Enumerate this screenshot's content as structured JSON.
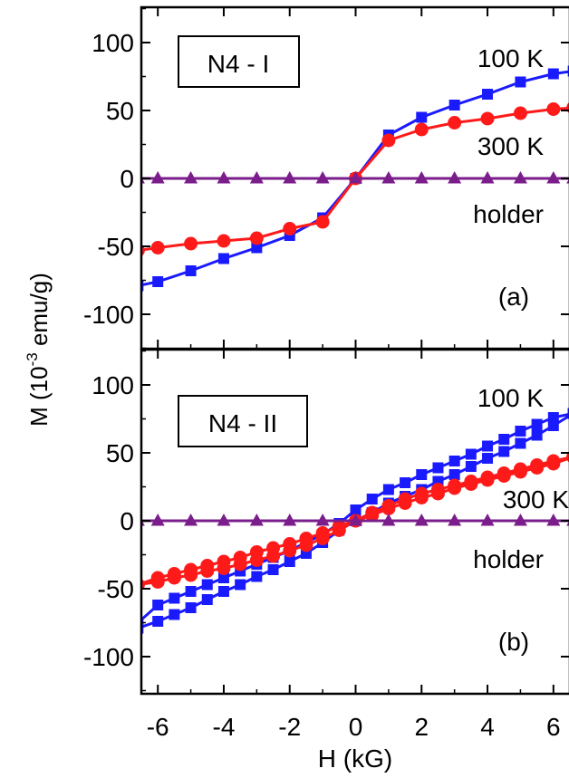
{
  "y_axis_label": {
    "main": "M (10",
    "exp": "-3",
    "unit": " emu/g)"
  },
  "x_axis_label": "H (kG)",
  "x_ticks": [
    "-6",
    "-4",
    "-2",
    "0",
    "2",
    "4",
    "6"
  ],
  "colors": {
    "100K": "#1a1aff",
    "300K": "#ff1a1a",
    "holder": "#7b1e8c"
  },
  "chart_data": [
    {
      "type": "line",
      "panel_label": "N4 - I",
      "corner_label": "(a)",
      "xlim": [
        -6.5,
        6.5
      ],
      "ylim": [
        -125,
        125
      ],
      "y_ticks": [
        "100",
        "50",
        "0",
        "-50",
        "-100"
      ],
      "annotations": [
        "100 K",
        "300 K",
        "holder"
      ],
      "series": [
        {
          "name": "100 K",
          "marker": "square",
          "color": "#1a1aff",
          "x": [
            -6.6,
            -6,
            -5,
            -4,
            -3,
            -2,
            -1,
            0,
            1,
            2,
            3,
            4,
            5,
            6,
            6.6
          ],
          "y": [
            -79,
            -76,
            -68,
            -59,
            -51,
            -42,
            -29,
            0,
            32,
            45,
            54,
            62,
            71,
            77,
            79
          ]
        },
        {
          "name": "300 K",
          "marker": "circle",
          "color": "#ff1a1a",
          "x": [
            -6.6,
            -6,
            -5,
            -4,
            -3,
            -2,
            -1,
            0,
            1,
            2,
            3,
            4,
            5,
            6,
            6.6
          ],
          "y": [
            -53,
            -51,
            -48,
            -46,
            -44,
            -37,
            -32,
            0,
            28,
            36,
            41,
            44,
            48,
            51,
            52
          ]
        },
        {
          "name": "holder",
          "marker": "triangle",
          "color": "#7b1e8c",
          "x": [
            -6.6,
            -6,
            -5,
            -4,
            -3,
            -2,
            -1,
            0,
            1,
            2,
            3,
            4,
            5,
            6,
            6.6
          ],
          "y": [
            0,
            0,
            0,
            0,
            0,
            0,
            0,
            0,
            0,
            0,
            0,
            0,
            0,
            0,
            0
          ]
        }
      ]
    },
    {
      "type": "line",
      "panel_label": "N4 - II",
      "corner_label": "(b)",
      "xlim": [
        -6.5,
        6.5
      ],
      "ylim": [
        -125,
        125
      ],
      "y_ticks": [
        "100",
        "50",
        "0",
        "-50",
        "-100"
      ],
      "annotations": [
        "100 K",
        "300 K",
        "holder"
      ],
      "series": [
        {
          "name": "100 K",
          "marker": "square",
          "color": "#1a1aff",
          "x": [
            -6.6,
            -6,
            -5.5,
            -5,
            -4.5,
            -4,
            -3.5,
            -3,
            -2.5,
            -2,
            -1.5,
            -1,
            -0.5,
            0,
            0.5,
            1,
            1.5,
            2,
            2.5,
            3,
            3.5,
            4,
            4.5,
            5,
            5.5,
            6,
            6.6,
            6.6,
            6,
            5.5,
            5,
            4.5,
            4,
            3.5,
            3,
            2.5,
            2,
            1.5,
            1,
            0.5,
            0,
            -0.5,
            -1,
            -1.5,
            -2,
            -2.5,
            -3,
            -3.5,
            -4,
            -4.5,
            -5,
            -5.5,
            -6,
            -6.6
          ],
          "y": [
            -79,
            -74,
            -69,
            -64,
            -58,
            -52,
            -47,
            -41,
            -36,
            -30,
            -24,
            -16,
            -7,
            0,
            6,
            13,
            18,
            23,
            29,
            34,
            40,
            46,
            51,
            57,
            63,
            70,
            79,
            79,
            76,
            71,
            66,
            60,
            55,
            49,
            44,
            39,
            34,
            28,
            23,
            16,
            8,
            -2,
            -10,
            -16,
            -22,
            -27,
            -32,
            -37,
            -42,
            -47,
            -52,
            -57,
            -62,
            -75
          ]
        },
        {
          "name": "300 K",
          "marker": "circle",
          "color": "#ff1a1a",
          "x": [
            -6.6,
            -6,
            -5.5,
            -5,
            -4.5,
            -4,
            -3.5,
            -3,
            -2.5,
            -2,
            -1.5,
            -1,
            -0.5,
            0,
            0.5,
            1,
            1.5,
            2,
            2.5,
            3,
            3.5,
            4,
            4.5,
            5,
            5.5,
            6,
            6.6,
            6.6,
            6,
            5.5,
            5,
            4.5,
            4,
            3.5,
            3,
            2.5,
            2,
            1.5,
            1,
            0.5,
            0,
            -0.5,
            -1,
            -1.5,
            -2,
            -2.5,
            -3,
            -3.5,
            -4,
            -4.5,
            -5,
            -5.5,
            -6,
            -6.6
          ],
          "y": [
            -47,
            -45,
            -42,
            -40,
            -37,
            -35,
            -32,
            -29,
            -26,
            -22,
            -18,
            -13,
            -7,
            0,
            4,
            9,
            13,
            17,
            20,
            24,
            27,
            30,
            33,
            36,
            39,
            42,
            47,
            47,
            44,
            41,
            38,
            35,
            32,
            29,
            26,
            23,
            20,
            16,
            11,
            6,
            0,
            -4,
            -9,
            -13,
            -17,
            -20,
            -23,
            -27,
            -30,
            -33,
            -36,
            -39,
            -42,
            -47
          ]
        },
        {
          "name": "holder",
          "marker": "triangle",
          "color": "#7b1e8c",
          "x": [
            -6.6,
            -6,
            -5,
            -4,
            -3,
            -2,
            -1,
            0,
            1,
            2,
            3,
            4,
            5,
            6,
            6.6
          ],
          "y": [
            0,
            0,
            0,
            0,
            0,
            0,
            0,
            0,
            0,
            0,
            0,
            0,
            0,
            0,
            0
          ]
        }
      ]
    }
  ]
}
